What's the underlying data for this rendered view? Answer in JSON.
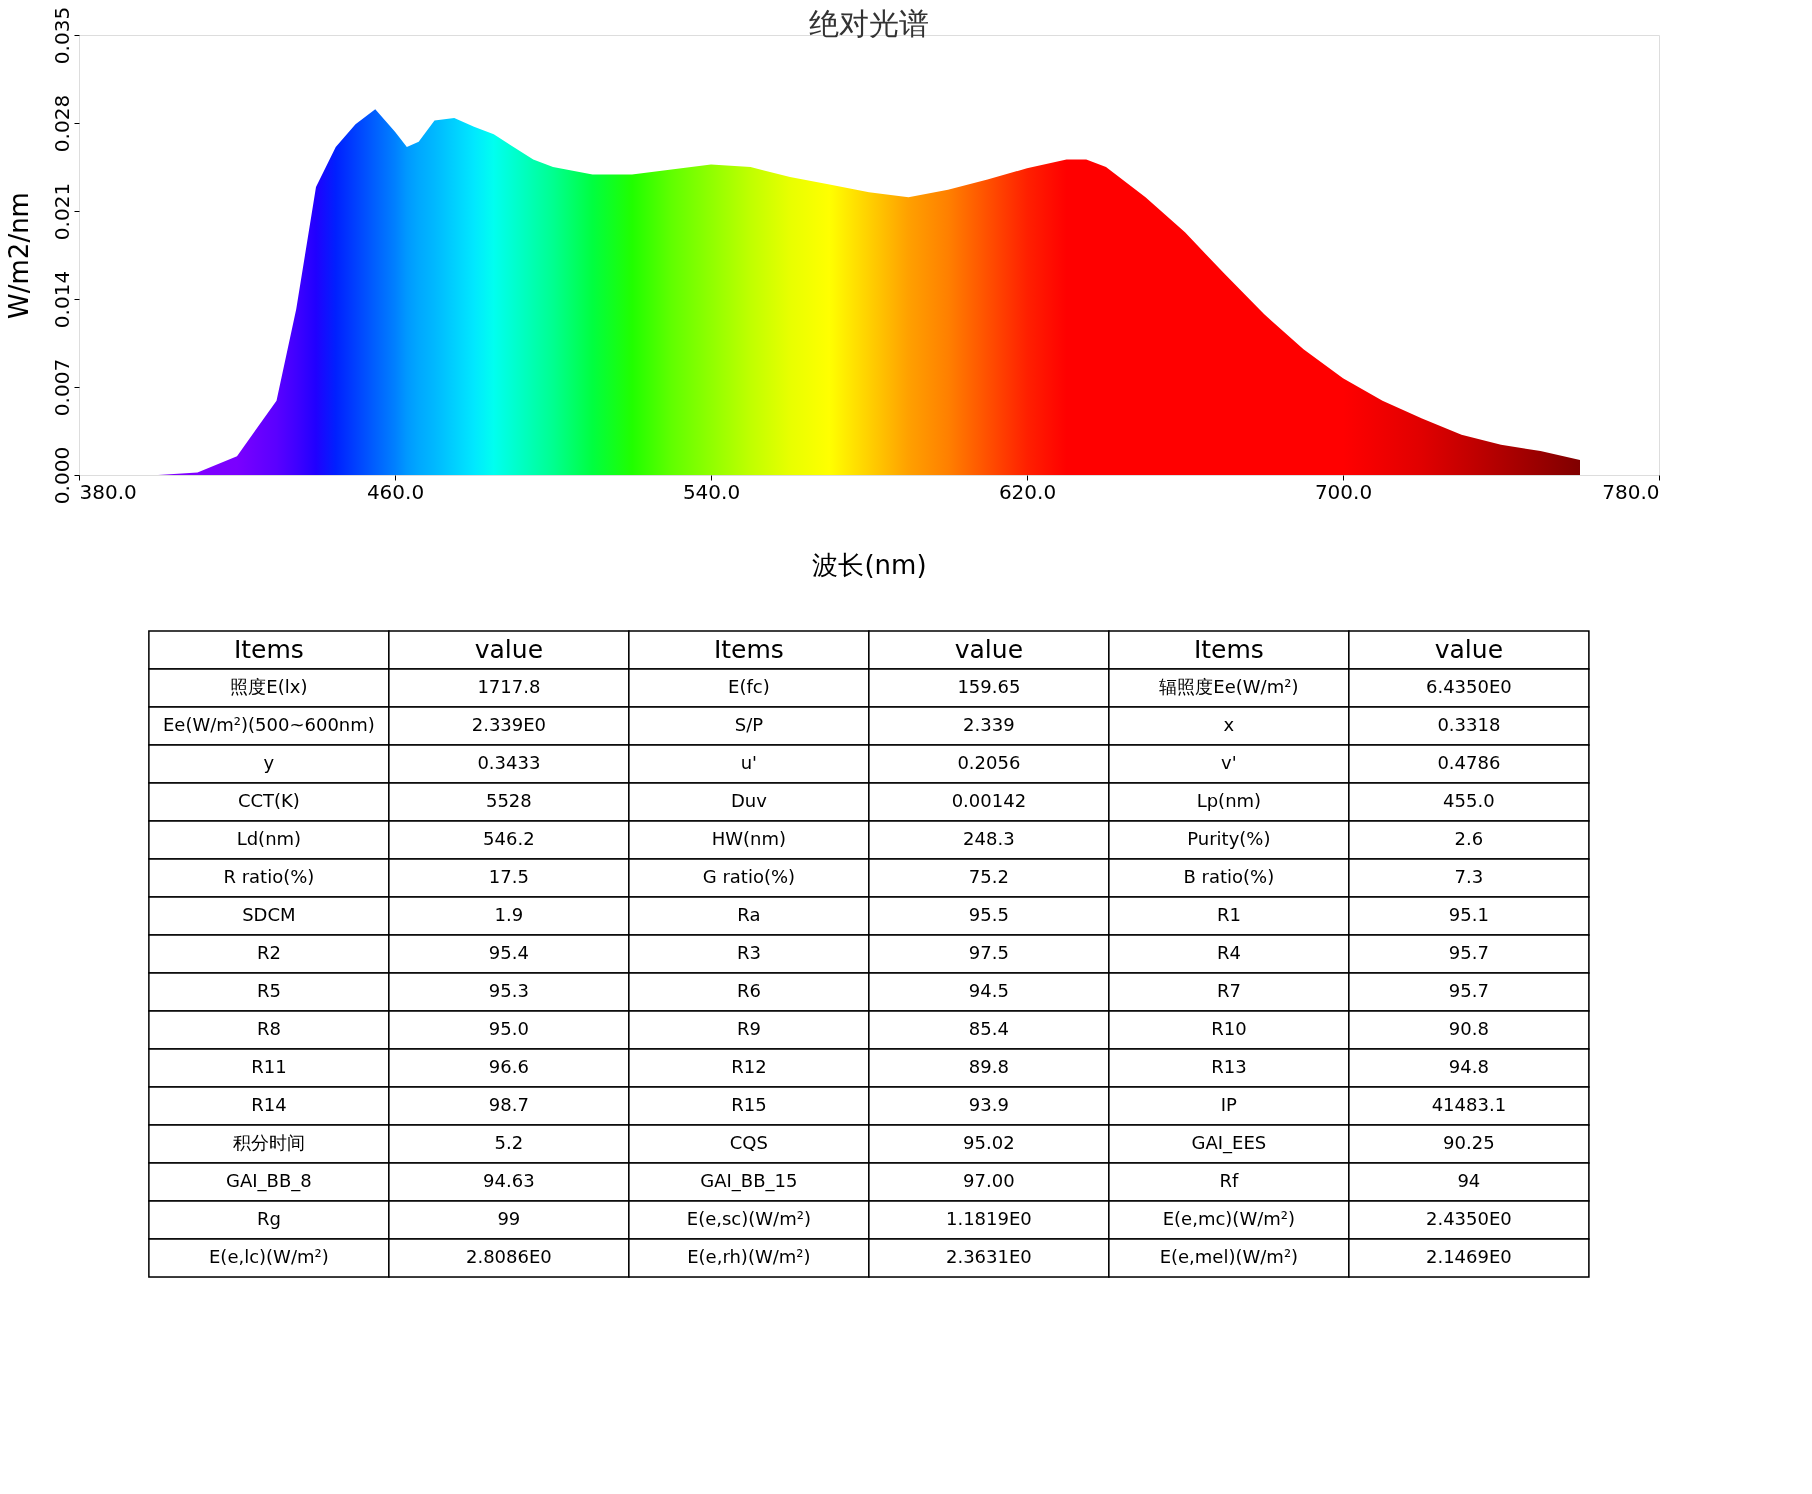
{
  "chart_data": [
    {
      "type": "area",
      "title": "绝对光谱",
      "xlabel": "波长(nm)",
      "ylabel": "W/m2/nm",
      "xlim": [
        380,
        780
      ],
      "ylim": [
        0,
        0.035
      ],
      "xticks": [
        {
          "value": 380,
          "label": "380.0"
        },
        {
          "value": 460,
          "label": "460.0"
        },
        {
          "value": 540,
          "label": "540.0"
        },
        {
          "value": 620,
          "label": "620.0"
        },
        {
          "value": 700,
          "label": "700.0"
        },
        {
          "value": 780,
          "label": "780.0"
        }
      ],
      "yticks": [
        {
          "value": 0,
          "label": "0.000"
        },
        {
          "value": 0.007,
          "label": "0.007"
        },
        {
          "value": 0.014,
          "label": "0.014"
        },
        {
          "value": 0.021,
          "label": "0.021"
        },
        {
          "value": 0.028,
          "label": "0.028"
        },
        {
          "value": 0.035,
          "label": "0.035"
        }
      ],
      "grid": false,
      "x": [
        380,
        400,
        410,
        420,
        430,
        435,
        440,
        445,
        450,
        455,
        460,
        463,
        466,
        470,
        475,
        480,
        485,
        490,
        495,
        500,
        510,
        520,
        530,
        540,
        550,
        560,
        570,
        580,
        590,
        600,
        610,
        620,
        630,
        635,
        640,
        650,
        660,
        670,
        680,
        690,
        700,
        710,
        720,
        730,
        740,
        750,
        760
      ],
      "values": [
        0,
        0,
        0.0002,
        0.0015,
        0.0059,
        0.0132,
        0.0229,
        0.0261,
        0.0279,
        0.0291,
        0.0273,
        0.0261,
        0.0265,
        0.0282,
        0.0284,
        0.0277,
        0.0271,
        0.0261,
        0.0251,
        0.0245,
        0.0239,
        0.0239,
        0.0243,
        0.0247,
        0.0245,
        0.0237,
        0.0231,
        0.0225,
        0.0221,
        0.0227,
        0.0235,
        0.0244,
        0.0251,
        0.0251,
        0.0245,
        0.0221,
        0.0193,
        0.016,
        0.0128,
        0.01,
        0.0077,
        0.0059,
        0.0045,
        0.0032,
        0.0024,
        0.0019,
        0.0012
      ],
      "colors": [
        "#8000ff",
        "#8000ff",
        "#7f00ff",
        "#7a00ff",
        "#5a00ff",
        "#4000ff",
        "#2000ff",
        "#0020ff",
        "#0040ff",
        "#0060ff",
        "#0080ff",
        "#0098ff",
        "#00a8ff",
        "#00b8ff",
        "#00d0ff",
        "#00e8ff",
        "#00fff0",
        "#00ffd0",
        "#00ffb0",
        "#00ff90",
        "#00ff40",
        "#20ff00",
        "#60ff00",
        "#90ff00",
        "#c0ff00",
        "#e8ff00",
        "#ffff00",
        "#ffd000",
        "#ffa000",
        "#ff8000",
        "#ff5000",
        "#ff2000",
        "#ff0000",
        "#ff0000",
        "#ff0000",
        "#ff0000",
        "#ff0000",
        "#ff0000",
        "#ff0000",
        "#ff0000",
        "#ff0000",
        "#f00000",
        "#e00000",
        "#c80000",
        "#b00000",
        "#980000",
        "#800000"
      ]
    },
    {
      "type": "other",
      "categories": [
        "Items",
        "value",
        "Items",
        "value",
        "Items",
        "value"
      ],
      "cell_labels": [
        [
          "照度E(lx)",
          "1717.8",
          "E(fc)",
          "159.65",
          "辐照度Ee(W/m²)",
          "6.4350E0"
        ],
        [
          "Ee(W/m²)(500~600nm)",
          "2.339E0",
          "S/P",
          "2.339",
          "x",
          "0.3318"
        ],
        [
          "y",
          "0.3433",
          "u'",
          "0.2056",
          "v'",
          "0.4786"
        ],
        [
          "CCT(K)",
          "5528",
          "Duv",
          "0.00142",
          "Lp(nm)",
          "455.0"
        ],
        [
          "Ld(nm)",
          "546.2",
          "HW(nm)",
          "248.3",
          "Purity(%)",
          "2.6"
        ],
        [
          "R ratio(%)",
          "17.5",
          "G ratio(%)",
          "75.2",
          "B ratio(%)",
          "7.3"
        ],
        [
          "SDCM",
          "1.9",
          "Ra",
          "95.5",
          "R1",
          "95.1"
        ],
        [
          "R2",
          "95.4",
          "R3",
          "97.5",
          "R4",
          "95.7"
        ],
        [
          "R5",
          "95.3",
          "R6",
          "94.5",
          "R7",
          "95.7"
        ],
        [
          "R8",
          "95.0",
          "R9",
          "85.4",
          "R10",
          "90.8"
        ],
        [
          "R11",
          "96.6",
          "R12",
          "89.8",
          "R13",
          "94.8"
        ],
        [
          "R14",
          "98.7",
          "R15",
          "93.9",
          "IP",
          "41483.1"
        ],
        [
          "积分时间",
          "5.2",
          "CQS",
          "95.02",
          "GAI_EES",
          "90.25"
        ],
        [
          "GAI_BB_8",
          "94.63",
          "GAI_BB_15",
          "97.00",
          "Rf",
          "94"
        ],
        [
          "Rg",
          "99",
          "E(e,sc)(W/m²)",
          "1.1819E0",
          "E(e,mc)(W/m²)",
          "2.4350E0"
        ],
        [
          "E(e,lc)(W/m²)",
          "2.8086E0",
          "E(e,rh)(W/m²)",
          "2.3631E0",
          "E(e,mel)(W/m²)",
          "2.1469E0"
        ]
      ]
    }
  ]
}
